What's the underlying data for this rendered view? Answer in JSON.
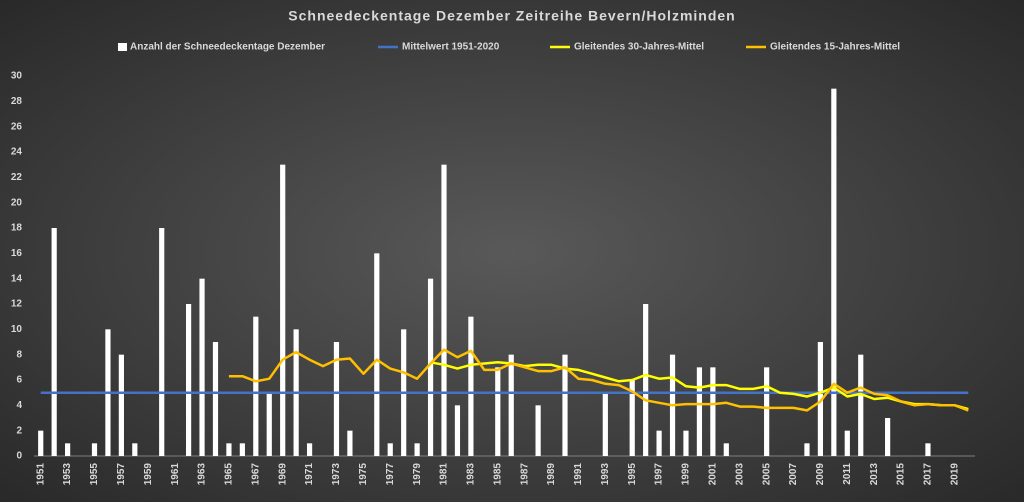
{
  "chart_data": {
    "type": "bar",
    "title": "Schneedeckentage  Dezember  Zeitreihe  Bevern/Holzminden",
    "categories": [
      "1951",
      null,
      "1953",
      null,
      "1955",
      null,
      "1957",
      null,
      "1959",
      null,
      "1961",
      null,
      "1963",
      null,
      "1965",
      null,
      "1967",
      null,
      "1969",
      null,
      "1971",
      null,
      "1973",
      null,
      "1975",
      null,
      "1977",
      null,
      "1979",
      null,
      "1981",
      null,
      "1983",
      null,
      "1985",
      null,
      "1987",
      null,
      "1989",
      null,
      "1991",
      null,
      "1993",
      null,
      "1995",
      null,
      "1997",
      null,
      "1999",
      null,
      "2001",
      null,
      "2003",
      null,
      "2005",
      null,
      "2007",
      null,
      "2009",
      null,
      "2011",
      null,
      "2013",
      null,
      "2015",
      null,
      "2017",
      null,
      "2019",
      null
    ],
    "ylim": [
      0,
      30
    ],
    "yticks": [
      0,
      2,
      4,
      6,
      8,
      10,
      12,
      14,
      16,
      18,
      20,
      22,
      24,
      26,
      28,
      30
    ],
    "series": [
      {
        "name": "Anzahl der Schneedeckentage Dezember",
        "type": "bar",
        "color": "#ffffff",
        "values": [
          2,
          18,
          1,
          0,
          1,
          10,
          8,
          1,
          0,
          18,
          0,
          12,
          14,
          9,
          1,
          1,
          11,
          5,
          23,
          10,
          1,
          0,
          9,
          2,
          0,
          16,
          1,
          10,
          1,
          14,
          23,
          4,
          11,
          0,
          7,
          8,
          0,
          4,
          0,
          8,
          0,
          0,
          5,
          0,
          6,
          12,
          2,
          8,
          2,
          7,
          7,
          1,
          0,
          0,
          7,
          0,
          0,
          1,
          9,
          29,
          2,
          8,
          0,
          3,
          0,
          0,
          1,
          0,
          0,
          0
        ]
      },
      {
        "name": "Mittelwert 1951-2020",
        "type": "line",
        "color": "#4472c4",
        "values": [
          5,
          5,
          5,
          5,
          5,
          5,
          5,
          5,
          5,
          5,
          5,
          5,
          5,
          5,
          5,
          5,
          5,
          5,
          5,
          5,
          5,
          5,
          5,
          5,
          5,
          5,
          5,
          5,
          5,
          5,
          5,
          5,
          5,
          5,
          5,
          5,
          5,
          5,
          5,
          5,
          5,
          5,
          5,
          5,
          5,
          5,
          5,
          5,
          5,
          5,
          5,
          5,
          5,
          5,
          5,
          5,
          5,
          5,
          5,
          5,
          5,
          5,
          5,
          5,
          5,
          5,
          5,
          5,
          5,
          5
        ]
      },
      {
        "name": "Gleitendes 30-Jahres-Mittel",
        "type": "line",
        "color": "#ffff00",
        "values": [
          null,
          null,
          null,
          null,
          null,
          null,
          null,
          null,
          null,
          null,
          null,
          null,
          null,
          null,
          null,
          null,
          null,
          null,
          null,
          null,
          null,
          null,
          null,
          null,
          null,
          null,
          null,
          null,
          null,
          7.4,
          7.2,
          6.9,
          7.2,
          7.3,
          7.4,
          7.3,
          7.1,
          7.2,
          7.2,
          6.9,
          6.8,
          6.5,
          6.2,
          5.9,
          6.0,
          6.4,
          6.1,
          6.2,
          5.5,
          5.4,
          5.6,
          5.6,
          5.3,
          5.3,
          5.5,
          5.0,
          4.9,
          4.7,
          5.0,
          5.4,
          4.7,
          4.9,
          4.5,
          4.6,
          4.3,
          4.1,
          4.1,
          4.0,
          4.0,
          3.7
        ]
      },
      {
        "name": "Gleitendes 15-Jahres-Mittel",
        "type": "line",
        "color": "#ffc000",
        "values": [
          null,
          null,
          null,
          null,
          null,
          null,
          null,
          null,
          null,
          null,
          null,
          null,
          null,
          null,
          6.3,
          6.3,
          5.9,
          6.1,
          7.6,
          8.2,
          7.6,
          7.1,
          7.6,
          7.7,
          6.5,
          7.6,
          6.9,
          6.6,
          6.1,
          7.3,
          8.4,
          7.8,
          8.3,
          6.8,
          6.8,
          7.3,
          7.0,
          6.7,
          6.7,
          7.0,
          6.1,
          6.0,
          5.7,
          5.6,
          5.1,
          4.4,
          4.2,
          4.0,
          4.1,
          4.1,
          4.1,
          4.2,
          3.9,
          3.9,
          3.8,
          3.8,
          3.8,
          3.6,
          4.3,
          5.7,
          5.0,
          5.4,
          4.9,
          4.8,
          4.3,
          4.0,
          4.1,
          4.0,
          4.0,
          3.6
        ]
      }
    ]
  }
}
